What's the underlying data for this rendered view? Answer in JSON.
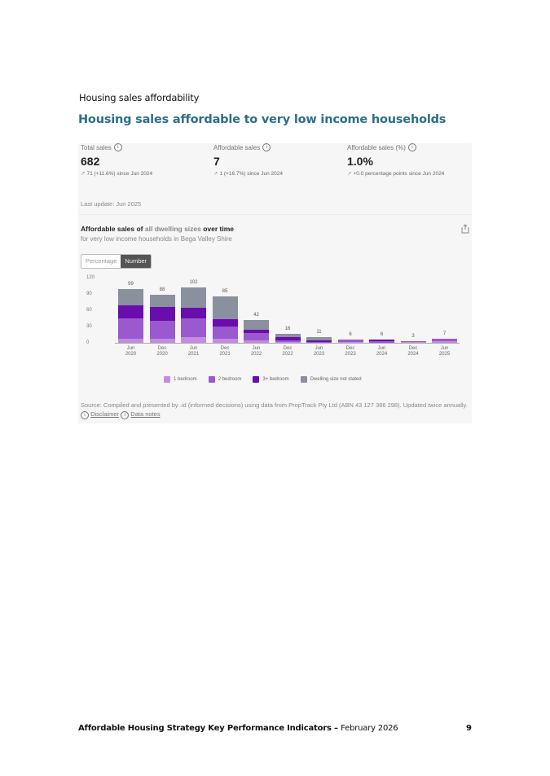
{
  "document": {
    "section_heading": "Housing sales affordability",
    "chart_title": "Housing sales affordable to very low income households"
  },
  "stats": [
    {
      "label": "Total sales",
      "value": "682",
      "change": "71 (+11.6%) since Jun 2024"
    },
    {
      "label": "Affordable sales",
      "value": "7",
      "change": "1 (+16.7%) since Jun 2024"
    },
    {
      "label": "Affordable sales (%)",
      "value": "1.0%",
      "change": "+0.0 percentage points since Jun 2024"
    }
  ],
  "last_update": "Last update: Jun 2025",
  "chart_header": {
    "title_part1": "Affordable sales of ",
    "title_part2": "all dwelling sizes",
    "title_part3": " over time",
    "subtitle": "for very low income households in Bega Valley Shire"
  },
  "toggle": {
    "options": [
      "Percentage",
      "Number"
    ],
    "selected": "Number"
  },
  "legend": [
    {
      "label": "1 bedroom",
      "color": "#c48be0"
    },
    {
      "label": "2 bedroom",
      "color": "#9b59d0"
    },
    {
      "label": "3+ bedroom",
      "color": "#6a0dad"
    },
    {
      "label": "Dwelling size not stated",
      "color": "#8a909d"
    }
  ],
  "source": {
    "text": "Source: Compiled and presented by .id (informed decisions) using data from PropTrack Pty Ltd (ABN 43 127 386 298). Updated twice annually.",
    "disclaimer_link": "Disclaimer",
    "data_notes_link": "Data notes"
  },
  "footer": {
    "title": "Affordable Housing Strategy Key Performance Indicators – ",
    "date": "February 2026",
    "page": "9"
  },
  "chart_data": {
    "type": "bar",
    "stacked": true,
    "title": "Affordable sales of all dwelling sizes over time",
    "subtitle": "for very low income households in Bega Valley Shire",
    "xlabel": "",
    "ylabel": "",
    "ylim": [
      0,
      120
    ],
    "yticks": [
      0,
      30,
      60,
      90,
      120
    ],
    "categories": [
      "Jun 2020",
      "Dec 2020",
      "Jun 2021",
      "Dec 2021",
      "Jun 2022",
      "Dec 2022",
      "Jun 2023",
      "Dec 2023",
      "Jun 2024",
      "Dec 2024",
      "Jun 2025"
    ],
    "totals": [
      99,
      88,
      102,
      85,
      42,
      16,
      11,
      6,
      6,
      3,
      7
    ],
    "series": [
      {
        "name": "1 bedroom",
        "color": "#c48be0",
        "values": [
          7,
          7,
          10,
          7,
          4,
          1,
          0,
          1,
          0,
          1,
          3
        ]
      },
      {
        "name": "2 bedroom",
        "color": "#9b59d0",
        "values": [
          38,
          34,
          35,
          23,
          14,
          4,
          2,
          5,
          3,
          2,
          4
        ]
      },
      {
        "name": "3+ bedroom",
        "color": "#6a0dad",
        "values": [
          24,
          25,
          19,
          13,
          6,
          5,
          3,
          0,
          3,
          0,
          0
        ]
      },
      {
        "name": "Dwelling size not stated",
        "color": "#8a909d",
        "values": [
          30,
          22,
          38,
          42,
          18,
          6,
          6,
          0,
          0,
          0,
          0
        ]
      }
    ],
    "legend_position": "bottom",
    "grid": false
  }
}
